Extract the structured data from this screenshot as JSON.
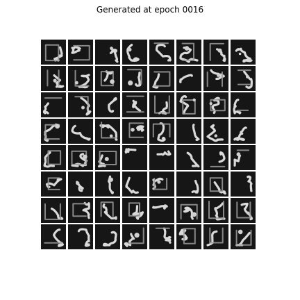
{
  "title": "Generated at epoch 0016",
  "grid": {
    "rows": 8,
    "cols": 8,
    "tile_count": 64
  }
}
